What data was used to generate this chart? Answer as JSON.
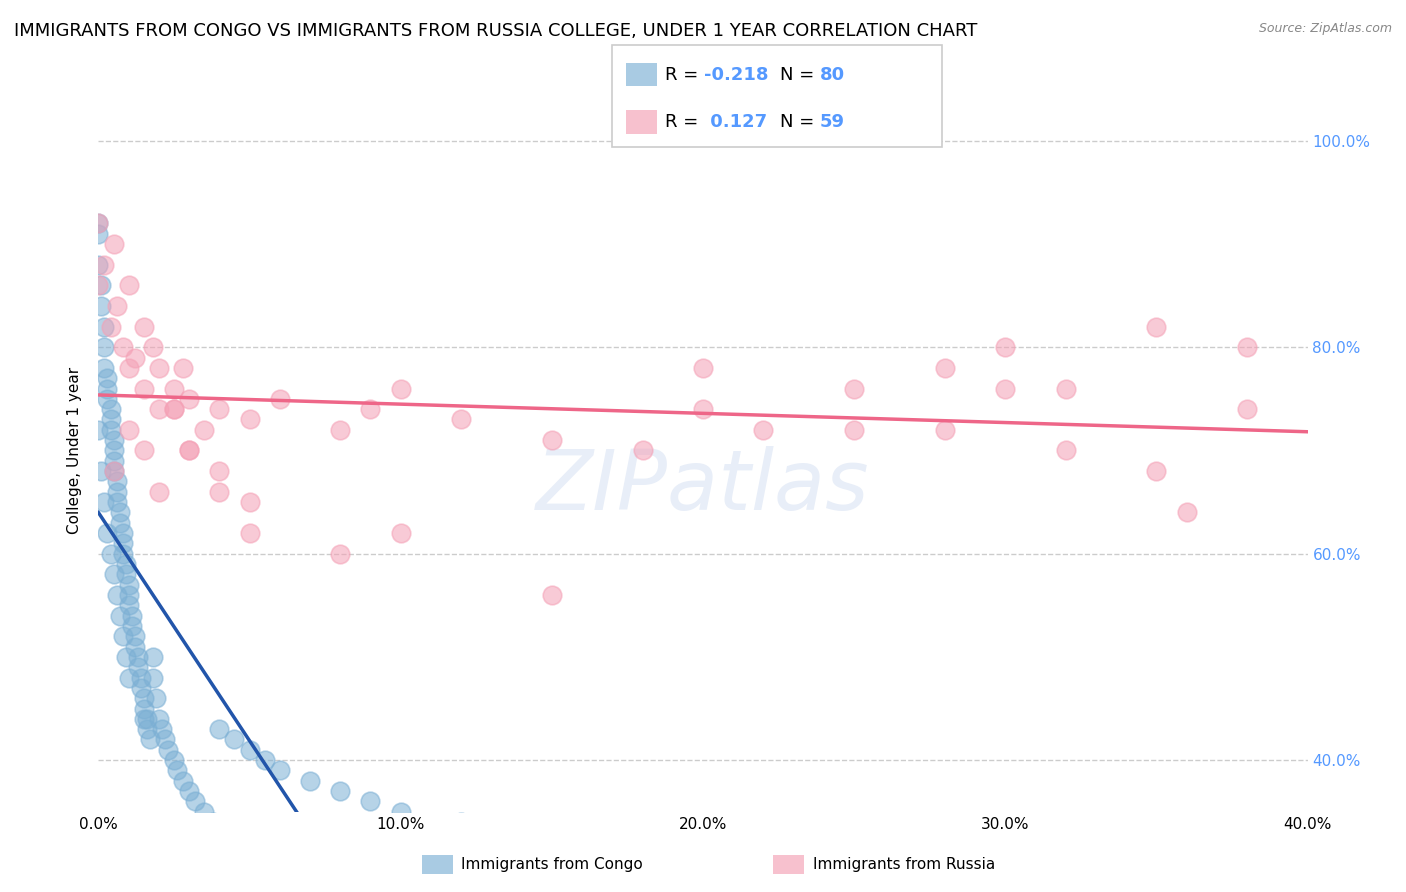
{
  "title": "IMMIGRANTS FROM CONGO VS IMMIGRANTS FROM RUSSIA COLLEGE, UNDER 1 YEAR CORRELATION CHART",
  "source": "Source: ZipAtlas.com",
  "ylabel": "College, Under 1 year",
  "xlim": [
    0.0,
    0.4
  ],
  "ylim": [
    0.35,
    1.05
  ],
  "yticks": [
    0.4,
    0.6,
    0.8,
    1.0
  ],
  "ytick_labels": [
    "40.0%",
    "60.0%",
    "80.0%",
    "100.0%"
  ],
  "xticks": [
    0.0,
    0.1,
    0.2,
    0.3,
    0.4
  ],
  "xtick_labels": [
    "0.0%",
    "10.0%",
    "20.0%",
    "30.0%",
    "40.0%"
  ],
  "congo_R": -0.218,
  "congo_N": 80,
  "russia_R": 0.127,
  "russia_N": 59,
  "congo_color": "#7BAFD4",
  "russia_color": "#F4A0B5",
  "congo_line_color": "#2255AA",
  "russia_line_color": "#EE6688",
  "dashed_line_color": "#BBBBBB",
  "watermark": "ZIPatlas",
  "background_color": "#ffffff",
  "grid_color": "#CCCCCC",
  "title_fontsize": 13,
  "axis_fontsize": 11,
  "tick_fontsize": 11,
  "right_tick_color": "#5599FF",
  "congo_x": [
    0.0,
    0.0,
    0.0,
    0.001,
    0.001,
    0.002,
    0.002,
    0.002,
    0.003,
    0.003,
    0.003,
    0.004,
    0.004,
    0.004,
    0.005,
    0.005,
    0.005,
    0.005,
    0.006,
    0.006,
    0.006,
    0.007,
    0.007,
    0.008,
    0.008,
    0.008,
    0.009,
    0.009,
    0.01,
    0.01,
    0.01,
    0.011,
    0.011,
    0.012,
    0.012,
    0.013,
    0.013,
    0.014,
    0.014,
    0.015,
    0.015,
    0.016,
    0.016,
    0.017,
    0.018,
    0.018,
    0.019,
    0.02,
    0.021,
    0.022,
    0.023,
    0.025,
    0.026,
    0.028,
    0.03,
    0.032,
    0.035,
    0.038,
    0.04,
    0.045,
    0.05,
    0.055,
    0.06,
    0.07,
    0.08,
    0.09,
    0.1,
    0.12,
    0.0,
    0.001,
    0.002,
    0.003,
    0.004,
    0.005,
    0.006,
    0.007,
    0.008,
    0.009,
    0.01,
    0.015
  ],
  "congo_y": [
    0.92,
    0.91,
    0.88,
    0.86,
    0.84,
    0.82,
    0.8,
    0.78,
    0.77,
    0.76,
    0.75,
    0.74,
    0.73,
    0.72,
    0.71,
    0.7,
    0.69,
    0.68,
    0.67,
    0.66,
    0.65,
    0.64,
    0.63,
    0.62,
    0.61,
    0.6,
    0.59,
    0.58,
    0.57,
    0.56,
    0.55,
    0.54,
    0.53,
    0.52,
    0.51,
    0.5,
    0.49,
    0.48,
    0.47,
    0.46,
    0.45,
    0.44,
    0.43,
    0.42,
    0.5,
    0.48,
    0.46,
    0.44,
    0.43,
    0.42,
    0.41,
    0.4,
    0.39,
    0.38,
    0.37,
    0.36,
    0.35,
    0.34,
    0.43,
    0.42,
    0.41,
    0.4,
    0.39,
    0.38,
    0.37,
    0.36,
    0.35,
    0.34,
    0.72,
    0.68,
    0.65,
    0.62,
    0.6,
    0.58,
    0.56,
    0.54,
    0.52,
    0.5,
    0.48,
    0.44
  ],
  "russia_x": [
    0.0,
    0.002,
    0.004,
    0.006,
    0.008,
    0.01,
    0.012,
    0.015,
    0.018,
    0.02,
    0.025,
    0.028,
    0.03,
    0.035,
    0.04,
    0.05,
    0.06,
    0.08,
    0.09,
    0.1,
    0.12,
    0.15,
    0.18,
    0.2,
    0.22,
    0.25,
    0.28,
    0.3,
    0.32,
    0.35,
    0.38,
    0.0,
    0.005,
    0.01,
    0.015,
    0.02,
    0.025,
    0.03,
    0.04,
    0.05,
    0.08,
    0.1,
    0.15,
    0.2,
    0.25,
    0.3,
    0.35,
    0.38,
    0.28,
    0.32,
    0.36,
    0.005,
    0.01,
    0.015,
    0.02,
    0.025,
    0.03,
    0.04,
    0.05
  ],
  "russia_y": [
    0.86,
    0.88,
    0.82,
    0.84,
    0.8,
    0.78,
    0.79,
    0.76,
    0.8,
    0.74,
    0.76,
    0.78,
    0.75,
    0.72,
    0.74,
    0.73,
    0.75,
    0.72,
    0.74,
    0.76,
    0.73,
    0.71,
    0.7,
    0.74,
    0.72,
    0.76,
    0.78,
    0.8,
    0.76,
    0.82,
    0.8,
    0.92,
    0.68,
    0.72,
    0.7,
    0.66,
    0.74,
    0.7,
    0.68,
    0.65,
    0.6,
    0.62,
    0.56,
    0.78,
    0.72,
    0.76,
    0.68,
    0.74,
    0.72,
    0.7,
    0.64,
    0.9,
    0.86,
    0.82,
    0.78,
    0.74,
    0.7,
    0.66,
    0.62
  ]
}
